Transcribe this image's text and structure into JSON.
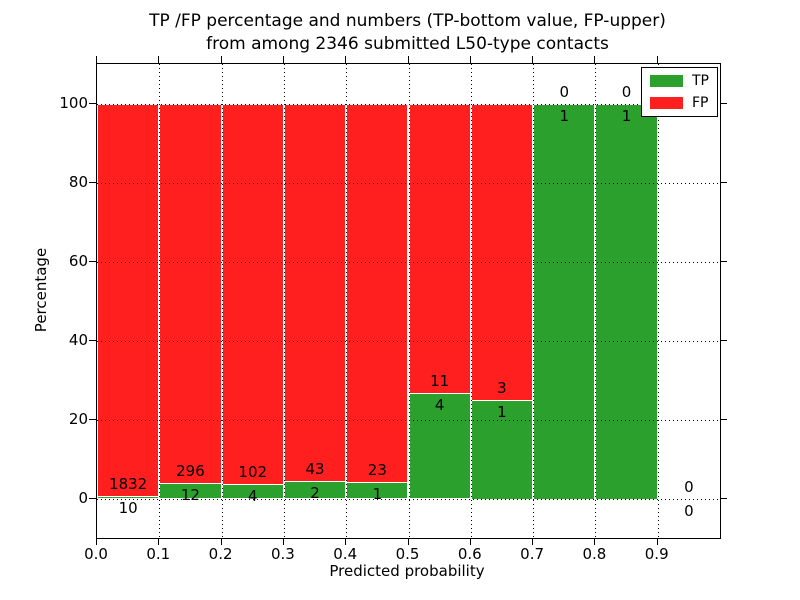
{
  "chart_data": {
    "type": "bar",
    "stacked": true,
    "normalized": "percent-of-bin-total",
    "title_line1": "TP /FP percentage and numbers (TP-bottom value, FP-upper)",
    "title_line2": "from among 2346 submitted L50-type contacts",
    "xlabel": "Predicted probability",
    "ylabel": "Percentage",
    "xlim": [
      0.0,
      1.0
    ],
    "ylim": [
      -10,
      110
    ],
    "xticks": [
      0.0,
      0.1,
      0.2,
      0.3,
      0.4,
      0.5,
      0.6,
      0.7,
      0.8,
      0.9
    ],
    "xtick_labels": [
      "0.0",
      "0.1",
      "0.2",
      "0.3",
      "0.4",
      "0.5",
      "0.6",
      "0.7",
      "0.8",
      "0.9"
    ],
    "yticks": [
      0,
      20,
      40,
      60,
      80,
      100
    ],
    "ytick_labels": [
      "0",
      "20",
      "40",
      "60",
      "80",
      "100"
    ],
    "grid": true,
    "grid_style": "dotted",
    "legend": {
      "tp": "TP",
      "fp": "FP",
      "position": "upper right"
    },
    "colors": {
      "tp": "#2ca02c",
      "fp": "#ff1f1f",
      "bar_edge": "#ffffff",
      "grid": "#000000"
    },
    "annotation_rule": "FP count printed above TP/FP boundary, TP count printed below it",
    "bins": [
      {
        "x_start": 0.0,
        "x_end": 0.1,
        "tp": 10,
        "fp": 1832
      },
      {
        "x_start": 0.1,
        "x_end": 0.2,
        "tp": 12,
        "fp": 296
      },
      {
        "x_start": 0.2,
        "x_end": 0.3,
        "tp": 4,
        "fp": 102
      },
      {
        "x_start": 0.3,
        "x_end": 0.4,
        "tp": 2,
        "fp": 43
      },
      {
        "x_start": 0.4,
        "x_end": 0.5,
        "tp": 1,
        "fp": 23
      },
      {
        "x_start": 0.5,
        "x_end": 0.6,
        "tp": 4,
        "fp": 11
      },
      {
        "x_start": 0.6,
        "x_end": 0.7,
        "tp": 1,
        "fp": 3
      },
      {
        "x_start": 0.7,
        "x_end": 0.8,
        "tp": 1,
        "fp": 0
      },
      {
        "x_start": 0.8,
        "x_end": 0.9,
        "tp": 1,
        "fp": 0
      },
      {
        "x_start": 0.9,
        "x_end": 1.0,
        "tp": 0,
        "fp": 0
      }
    ]
  }
}
